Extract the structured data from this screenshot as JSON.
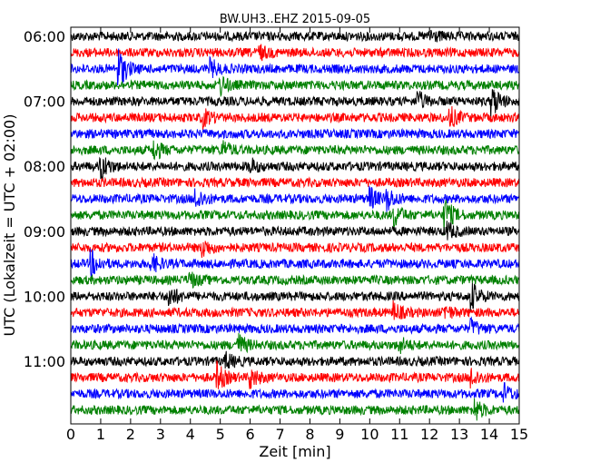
{
  "chart_data": {
    "type": "line",
    "title": "BW.UH3..EHZ 2015-09-05",
    "xlabel": "Zeit  [min]",
    "ylabel": "UTC (Lokalzeit = UTC + 02:00)",
    "xlim": [
      0,
      15
    ],
    "x_ticks": [
      "0",
      "1",
      "2",
      "3",
      "4",
      "5",
      "6",
      "7",
      "8",
      "9",
      "10",
      "11",
      "12",
      "13",
      "14",
      "15"
    ],
    "y_ticks": [
      "06:00",
      "07:00",
      "08:00",
      "09:00",
      "10:00",
      "11:00"
    ],
    "trace_interval_min": 15,
    "first_trace": "06:00",
    "trace_count": 24,
    "colors": [
      "#000000",
      "#ff0000",
      "#0000ff",
      "#008000"
    ],
    "grid": false,
    "events": [
      {
        "trace": 0,
        "t": 12.0,
        "amp": 0.6
      },
      {
        "trace": 1,
        "t": 6.3,
        "amp": 0.6
      },
      {
        "trace": 2,
        "t": 1.6,
        "amp": 1.8
      },
      {
        "trace": 2,
        "t": 4.7,
        "amp": 0.7
      },
      {
        "trace": 3,
        "t": 5.0,
        "amp": 0.8
      },
      {
        "trace": 4,
        "t": 11.6,
        "amp": 0.8
      },
      {
        "trace": 4,
        "t": 14.1,
        "amp": 1.3
      },
      {
        "trace": 5,
        "t": 4.4,
        "amp": 0.8
      },
      {
        "trace": 5,
        "t": 12.7,
        "amp": 0.8
      },
      {
        "trace": 7,
        "t": 2.8,
        "amp": 0.8
      },
      {
        "trace": 7,
        "t": 5.1,
        "amp": 0.7
      },
      {
        "trace": 8,
        "t": 1.0,
        "amp": 1.2
      },
      {
        "trace": 8,
        "t": 6.0,
        "amp": 0.6
      },
      {
        "trace": 10,
        "t": 4.2,
        "amp": 0.9
      },
      {
        "trace": 10,
        "t": 10.0,
        "amp": 1.0
      },
      {
        "trace": 10,
        "t": 10.6,
        "amp": 0.9
      },
      {
        "trace": 11,
        "t": 10.8,
        "amp": 1.0
      },
      {
        "trace": 11,
        "t": 12.5,
        "amp": 1.6
      },
      {
        "trace": 12,
        "t": 12.6,
        "amp": 0.7
      },
      {
        "trace": 13,
        "t": 4.4,
        "amp": 0.8
      },
      {
        "trace": 14,
        "t": 0.7,
        "amp": 1.0
      },
      {
        "trace": 14,
        "t": 2.7,
        "amp": 0.8
      },
      {
        "trace": 15,
        "t": 4.0,
        "amp": 0.6
      },
      {
        "trace": 16,
        "t": 3.3,
        "amp": 0.9
      },
      {
        "trace": 16,
        "t": 13.4,
        "amp": 1.2
      },
      {
        "trace": 17,
        "t": 10.8,
        "amp": 0.8
      },
      {
        "trace": 17,
        "t": 12.5,
        "amp": 0.6
      },
      {
        "trace": 18,
        "t": 13.4,
        "amp": 0.7
      },
      {
        "trace": 19,
        "t": 5.6,
        "amp": 0.9
      },
      {
        "trace": 19,
        "t": 11.0,
        "amp": 0.6
      },
      {
        "trace": 20,
        "t": 5.2,
        "amp": 0.6
      },
      {
        "trace": 21,
        "t": 4.9,
        "amp": 1.2
      },
      {
        "trace": 21,
        "t": 6.0,
        "amp": 0.9
      },
      {
        "trace": 21,
        "t": 13.4,
        "amp": 0.8
      },
      {
        "trace": 22,
        "t": 14.5,
        "amp": 0.7
      },
      {
        "trace": 23,
        "t": 13.5,
        "amp": 1.0
      }
    ]
  }
}
